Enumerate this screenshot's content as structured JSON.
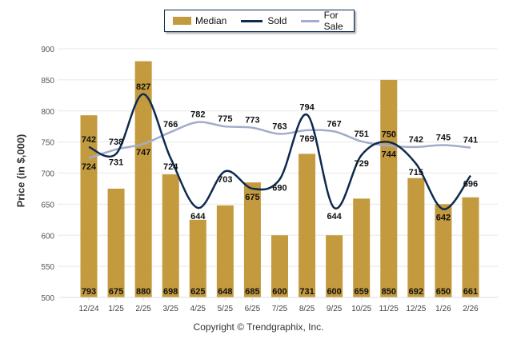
{
  "chart_data": {
    "type": "bar",
    "title": "",
    "xlabel": "",
    "ylabel": "Price (in $,000)",
    "ylim": [
      500,
      900
    ],
    "yticks": [
      500,
      550,
      600,
      650,
      700,
      750,
      800,
      850,
      900
    ],
    "grid": true,
    "legend_position": "top-center",
    "categories": [
      "12/24",
      "1/25",
      "2/25",
      "3/25",
      "4/25",
      "5/25",
      "6/25",
      "7/25",
      "8/25",
      "9/25",
      "10/25",
      "11/25",
      "12/25",
      "1/26",
      "2/26"
    ],
    "series": [
      {
        "name": "Median",
        "type": "bar",
        "color": "#c49a3e",
        "values": [
          793,
          675,
          880,
          698,
          625,
          648,
          685,
          600,
          731,
          600,
          659,
          850,
          692,
          650,
          661
        ]
      },
      {
        "name": "Sold",
        "type": "line",
        "color": "#0e2a4e",
        "values": [
          742,
          731,
          827,
          724,
          644,
          703,
          675,
          690,
          794,
          644,
          729,
          750,
          715,
          642,
          696
        ]
      },
      {
        "name": "For Sale",
        "type": "line",
        "color": "#a3acc9",
        "values": [
          724,
          738,
          747,
          766,
          782,
          775,
          773,
          763,
          769,
          767,
          751,
          744,
          742,
          745,
          741
        ]
      }
    ]
  },
  "legend": {
    "median": "Median",
    "sold": "Sold",
    "for_sale": "For Sale"
  },
  "colors": {
    "median": "#c49a3e",
    "sold": "#0e2a4e",
    "for_sale": "#a3acc9",
    "grid": "#e8e8e8"
  },
  "copyright": "Copyright © Trendgraphix, Inc."
}
